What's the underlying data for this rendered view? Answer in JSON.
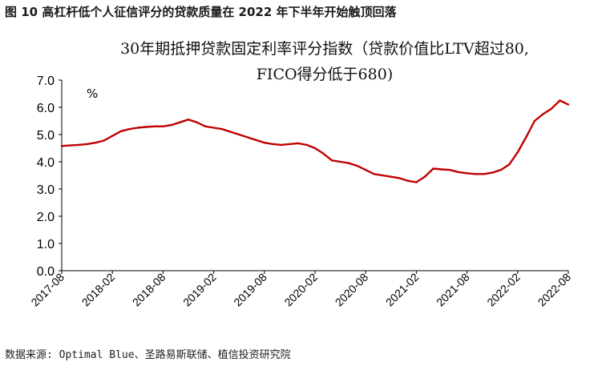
{
  "figure_caption": "图 10  高杠杆低个人征信评分的贷款质量在 2022 年下半年开始触顶回落",
  "source_note": "数据来源: Optimal Blue、圣路易斯联储、植信投资研究院",
  "chart_data": {
    "type": "line",
    "title_line1": "30年期抵押贷款固定利率评分指数（贷款价值比LTV超过80,",
    "title_line2": "FICO得分低于680)",
    "ylabel": "%",
    "xlabel": "",
    "ylim": [
      0.0,
      7.0
    ],
    "yticks": [
      "0.0",
      "1.0",
      "2.0",
      "3.0",
      "4.0",
      "5.0",
      "6.0",
      "7.0"
    ],
    "xticks": [
      "2017-08",
      "2018-02",
      "2018-08",
      "2019-02",
      "2019-08",
      "2020-02",
      "2020-08",
      "2021-02",
      "2021-08",
      "2022-02",
      "2022-08"
    ],
    "grid": false,
    "legend": "none",
    "colors": {
      "line": "#c00000",
      "axis": "#000000"
    },
    "series": [
      {
        "x": [
          "2017-08",
          "2017-09",
          "2017-10",
          "2017-11",
          "2017-12",
          "2018-01",
          "2018-02",
          "2018-03",
          "2018-04",
          "2018-05",
          "2018-06",
          "2018-07",
          "2018-08",
          "2018-09",
          "2018-10",
          "2018-11",
          "2018-12",
          "2019-01",
          "2019-02",
          "2019-03",
          "2019-04",
          "2019-05",
          "2019-06",
          "2019-07",
          "2019-08",
          "2019-09",
          "2019-10",
          "2019-11",
          "2019-12",
          "2020-01",
          "2020-02",
          "2020-03",
          "2020-04",
          "2020-05",
          "2020-06",
          "2020-07",
          "2020-08",
          "2020-09",
          "2020-10",
          "2020-11",
          "2020-12",
          "2021-01",
          "2021-02",
          "2021-03",
          "2021-04",
          "2021-05",
          "2021-06",
          "2021-07",
          "2021-08",
          "2021-09",
          "2021-10",
          "2021-11",
          "2021-12",
          "2022-01",
          "2022-02",
          "2022-03",
          "2022-04",
          "2022-05",
          "2022-06",
          "2022-07",
          "2022-08"
        ],
        "values": [
          4.58,
          4.6,
          4.62,
          4.65,
          4.7,
          4.78,
          4.95,
          5.12,
          5.2,
          5.25,
          5.28,
          5.3,
          5.3,
          5.35,
          5.45,
          5.55,
          5.45,
          5.3,
          5.25,
          5.2,
          5.1,
          5.0,
          4.9,
          4.8,
          4.7,
          4.65,
          4.62,
          4.65,
          4.68,
          4.62,
          4.5,
          4.3,
          4.05,
          4.0,
          3.95,
          3.85,
          3.7,
          3.55,
          3.5,
          3.45,
          3.4,
          3.3,
          3.25,
          3.45,
          3.75,
          3.72,
          3.7,
          3.62,
          3.58,
          3.55,
          3.55,
          3.6,
          3.7,
          3.9,
          4.35,
          4.9,
          5.5,
          5.75,
          5.95,
          6.25,
          6.1
        ]
      }
    ]
  }
}
